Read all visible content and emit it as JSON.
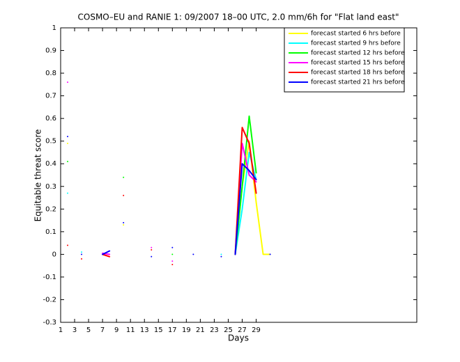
{
  "chart_data": {
    "type": "line",
    "title": "COSMO–EU and RANIE 1: 09/2007 18–00 UTC, 2.0 mm/6h for \"Flat land east\"",
    "xlabel": "Days",
    "ylabel": "Equitable threat score",
    "x": [
      1,
      2,
      3,
      4,
      5,
      6,
      7,
      8,
      9,
      10,
      11,
      12,
      13,
      14,
      15,
      16,
      17,
      18,
      19,
      20,
      21,
      22,
      23,
      24,
      25,
      26,
      27,
      28,
      29,
      30,
      31
    ],
    "xlim": [
      1,
      52
    ],
    "ylim": [
      -0.3,
      1
    ],
    "xticks": [
      1,
      3,
      5,
      7,
      9,
      11,
      13,
      15,
      17,
      19,
      21,
      23,
      25,
      27,
      29
    ],
    "yticks": [
      -0.3,
      -0.2,
      -0.1,
      0,
      0.1,
      0.2,
      0.3,
      0.4,
      0.5,
      0.6,
      0.7,
      0.8,
      0.9,
      1
    ],
    "legend_position": "upper-right",
    "series": [
      {
        "name": "forecast started 6 hrs before",
        "color": "#ffff00",
        "values": [
          null,
          0.49,
          null,
          null,
          null,
          null,
          null,
          null,
          null,
          0.13,
          null,
          null,
          null,
          null,
          null,
          null,
          null,
          null,
          null,
          null,
          null,
          null,
          null,
          null,
          null,
          0,
          0.3,
          0.5,
          0.23,
          0,
          0
        ]
      },
      {
        "name": "forecast started 9 hrs before",
        "color": "#00ffff",
        "values": [
          null,
          0.27,
          null,
          0.01,
          null,
          null,
          null,
          null,
          null,
          null,
          null,
          null,
          null,
          null,
          null,
          null,
          null,
          null,
          null,
          null,
          null,
          null,
          null,
          0,
          null,
          0,
          0.2,
          0.45,
          0.33,
          null,
          null
        ]
      },
      {
        "name": "forecast started 12 hrs before",
        "color": "#00ff00",
        "values": [
          null,
          0.41,
          null,
          null,
          null,
          null,
          null,
          null,
          null,
          0.34,
          null,
          null,
          null,
          null,
          null,
          null,
          0,
          null,
          null,
          null,
          null,
          null,
          null,
          null,
          null,
          0,
          0.3,
          0.61,
          0.36,
          null,
          null
        ]
      },
      {
        "name": "forecast started 15 hrs before",
        "color": "#ff00ff",
        "values": [
          null,
          0.76,
          null,
          null,
          null,
          null,
          0.005,
          0,
          null,
          null,
          null,
          null,
          null,
          0.03,
          null,
          null,
          -0.03,
          null,
          null,
          null,
          null,
          null,
          null,
          null,
          null,
          0,
          0.49,
          0.35,
          0.32,
          null,
          null
        ]
      },
      {
        "name": "forecast started 18 hrs before",
        "color": "#ff0000",
        "values": [
          null,
          0.04,
          null,
          -0.02,
          null,
          null,
          0,
          -0.01,
          null,
          0.26,
          null,
          null,
          null,
          0.02,
          null,
          null,
          -0.045,
          null,
          null,
          null,
          null,
          null,
          null,
          null,
          null,
          0,
          0.56,
          0.49,
          0.27,
          null,
          null
        ]
      },
      {
        "name": "forecast started 21 hrs before",
        "color": "#0000ff",
        "values": [
          null,
          0.52,
          null,
          0,
          null,
          null,
          0,
          0.015,
          null,
          0.14,
          null,
          null,
          null,
          -0.01,
          null,
          null,
          0.03,
          null,
          null,
          0,
          null,
          null,
          null,
          -0.01,
          null,
          0,
          0.4,
          0.37,
          0.33,
          null,
          0
        ]
      }
    ]
  }
}
